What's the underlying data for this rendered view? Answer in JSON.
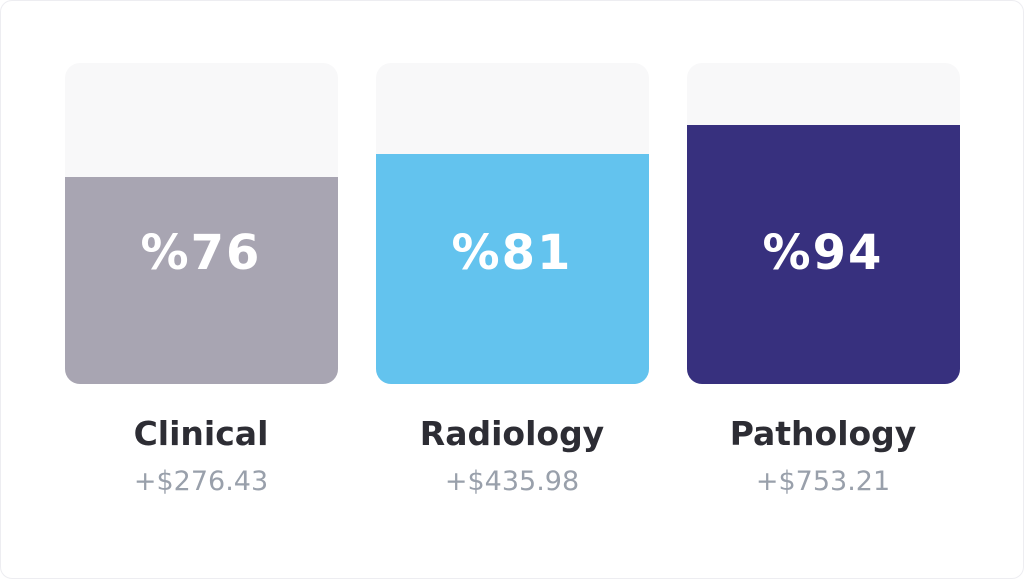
{
  "panel": {
    "background": "#ffffff",
    "border_color": "#ededf1"
  },
  "chart_data": {
    "type": "bar",
    "title": "",
    "orientation": "vertical",
    "categories": [
      "Clinical",
      "Radiology",
      "Pathology"
    ],
    "values": [
      76,
      81,
      94
    ],
    "value_labels": [
      "%76",
      "%81",
      "%94"
    ],
    "deltas": [
      "+$276.43",
      "+$435.98",
      "+$753.21"
    ],
    "bar_colors": [
      "#a8a5b2",
      "#63c3ee",
      "#37307e"
    ],
    "track_color": "#f8f8f9",
    "value_label_color": "#ffffff",
    "category_label_color": "#2d2d34",
    "delta_label_color": "#99a0ab",
    "ylim": [
      0,
      100
    ],
    "grid": false,
    "legend_position": "none",
    "fill_heights_pct": [
      64.5,
      71.8,
      80.7
    ]
  }
}
